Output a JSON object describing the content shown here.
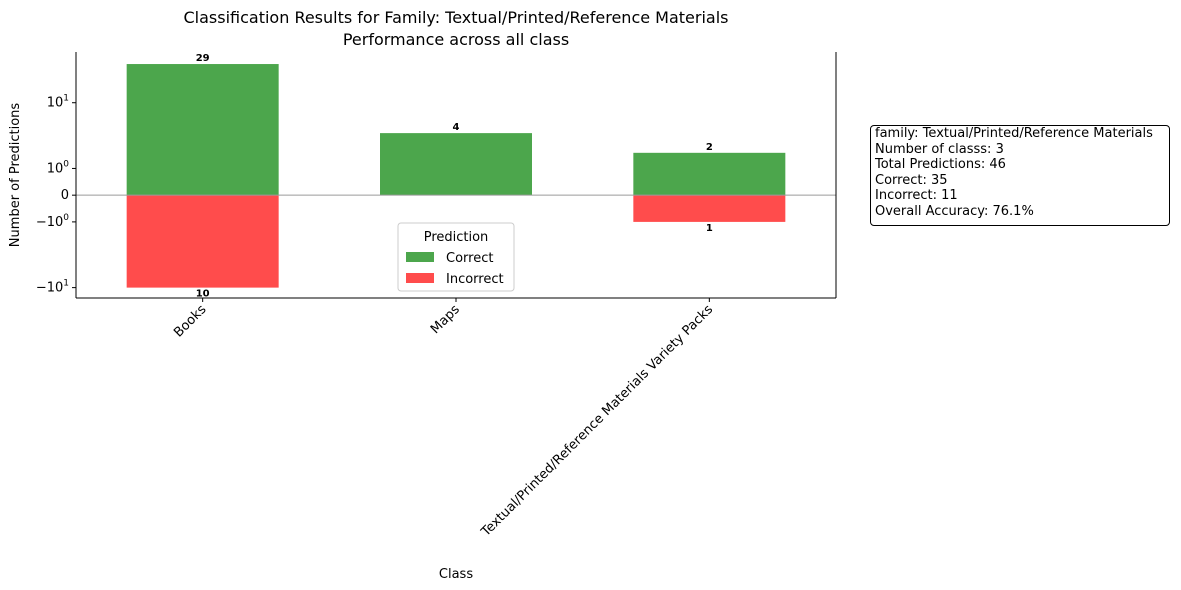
{
  "chart_data": {
    "type": "bar",
    "title": "Classification Results for Family: Textual/Printed/Reference Materials",
    "subtitle": "Performance across all class",
    "xlabel": "Class",
    "ylabel": "Number of Predictions",
    "yscale": "symlog",
    "categories": [
      "Books",
      "Maps",
      "Textual/Printed/Reference Materials Variety Packs"
    ],
    "series": [
      {
        "name": "Correct",
        "values": [
          29,
          4,
          2
        ],
        "color": "#4ca64c",
        "direction": "positive"
      },
      {
        "name": "Incorrect",
        "values": [
          10,
          0,
          1
        ],
        "color": "#ff4c4c",
        "direction": "negative"
      }
    ],
    "data_labels": {
      "correct": [
        "29",
        "4",
        "2"
      ],
      "incorrect": [
        "10",
        "",
        "1"
      ]
    },
    "yticks": [
      {
        "value": 10,
        "label": "10",
        "exp": "1"
      },
      {
        "value": 1,
        "label": "10",
        "exp": "0"
      },
      {
        "value": 0,
        "label": "0",
        "exp": ""
      },
      {
        "value": -1,
        "label": "−10",
        "exp": "0"
      },
      {
        "value": -10,
        "label": "−10",
        "exp": "1"
      }
    ],
    "ylim": [
      -13.4,
      40
    ],
    "legend": {
      "title": "Prediction",
      "placement": "lower-center",
      "entries": [
        "Correct",
        "Incorrect"
      ]
    },
    "grid": false
  },
  "stats": {
    "lines": [
      "family: Textual/Printed/Reference Materials",
      "Number of classs: 3",
      "Total Predictions: 46",
      "Correct: 35",
      "Incorrect: 11",
      "Overall Accuracy: 76.1%"
    ]
  }
}
